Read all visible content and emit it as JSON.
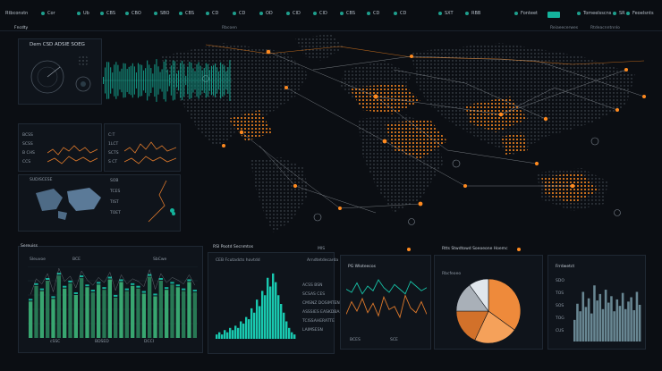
{
  "topbar": {
    "brand": "Rtbconstn",
    "items": [
      "Cor",
      "Ub",
      "CBS",
      "CBO",
      "SBO",
      "CBS",
      "CD",
      "CD",
      "OD",
      "CID",
      "CID",
      "CBS",
      "CD",
      "CD",
      "SXT",
      "RBB",
      "Fonteet",
      "Tomeelsscns",
      "SR",
      "Feoelsnts"
    ]
  },
  "subbar": {
    "left": "Fncdty",
    "items": [
      "Rbcoen",
      "Reiaeecerwes",
      "Rtdeacnntnnlo"
    ]
  },
  "left_panels": {
    "radar_title": "Dem CSD ADSIE SOEG",
    "mini_rows_a": [
      "BCSS",
      "SCSS",
      "B CHS",
      "CCS"
    ],
    "mini_rows_b": [
      "C:T",
      "1LCT",
      "SCTS",
      "S CT"
    ],
    "map_title": "SUDISCESE",
    "map_rows": [
      "SOB",
      "TCES",
      "TIST",
      "TOET"
    ]
  },
  "bottom": {
    "panel1": {
      "title": "Sereuiss",
      "legend": [
        "Sleuvoe",
        "BCE",
        "SbCwe"
      ],
      "footer": [
        "cSSC",
        "BDSED",
        "DCCI"
      ]
    },
    "panel2": {
      "title": "RSI Pootd Secnmtos",
      "sub": "CEB Fcutadcts hovtdd",
      "sub2": "Arndtetdecarda",
      "rows": [
        "ACSS BSN",
        "SCSAS CES",
        "CMSNZ DOSIMTEN",
        "ASSSIES EASKDBAIN",
        "TCISSAHERATTE",
        "LAIMSESN"
      ],
      "tag": "MIS"
    },
    "panel3": {
      "title": "PG Wloteecos",
      "footer": [
        "BCES",
        "SCE"
      ]
    },
    "panel4": {
      "title": "Rtts Stwdtowd Soeoeone Hoemc",
      "legend": "Rbcfeoeo"
    },
    "panel5": {
      "title": "Frrdwetct",
      "ticks": [
        "SDO",
        "TOS",
        "SOS",
        "TOG",
        "CUS"
      ]
    }
  },
  "chart_data": [
    {
      "type": "bar",
      "title": "",
      "values": [
        28,
        40,
        36,
        44,
        30,
        48,
        38,
        42,
        33,
        46,
        39,
        35,
        41,
        37,
        45,
        31,
        43,
        36,
        40,
        38,
        34,
        47,
        32,
        44,
        37,
        41,
        39,
        36,
        43,
        35
      ]
    },
    {
      "type": "bar",
      "title": "",
      "values": [
        2,
        3,
        2,
        4,
        3,
        5,
        4,
        6,
        5,
        8,
        7,
        10,
        9,
        14,
        12,
        18,
        15,
        22,
        20,
        28,
        24,
        30,
        26,
        20,
        16,
        12,
        8,
        5,
        3,
        2
      ]
    },
    {
      "type": "line",
      "title": "",
      "series": [
        {
          "values": [
            14,
            22,
            16,
            24,
            15,
            21,
            13,
            25,
            17,
            19,
            12,
            26,
            18,
            15,
            22,
            14
          ]
        },
        {
          "values": [
            30,
            28,
            34,
            27,
            32,
            29,
            36,
            31,
            28,
            33,
            30,
            27,
            35,
            32,
            29,
            31
          ]
        }
      ]
    },
    {
      "type": "pie",
      "title": "",
      "values": [
        35,
        22,
        18,
        15,
        10
      ],
      "colors": [
        "#ee8a3b",
        "#f5a15a",
        "#d2712a",
        "#a9b0b8",
        "#e0e6ec"
      ]
    },
    {
      "type": "bar",
      "title": "",
      "values": [
        20,
        35,
        28,
        46,
        32,
        40,
        26,
        52,
        38,
        44,
        30,
        48,
        36,
        42,
        28,
        39,
        33,
        45,
        30,
        37,
        41,
        29,
        46,
        34
      ]
    }
  ]
}
